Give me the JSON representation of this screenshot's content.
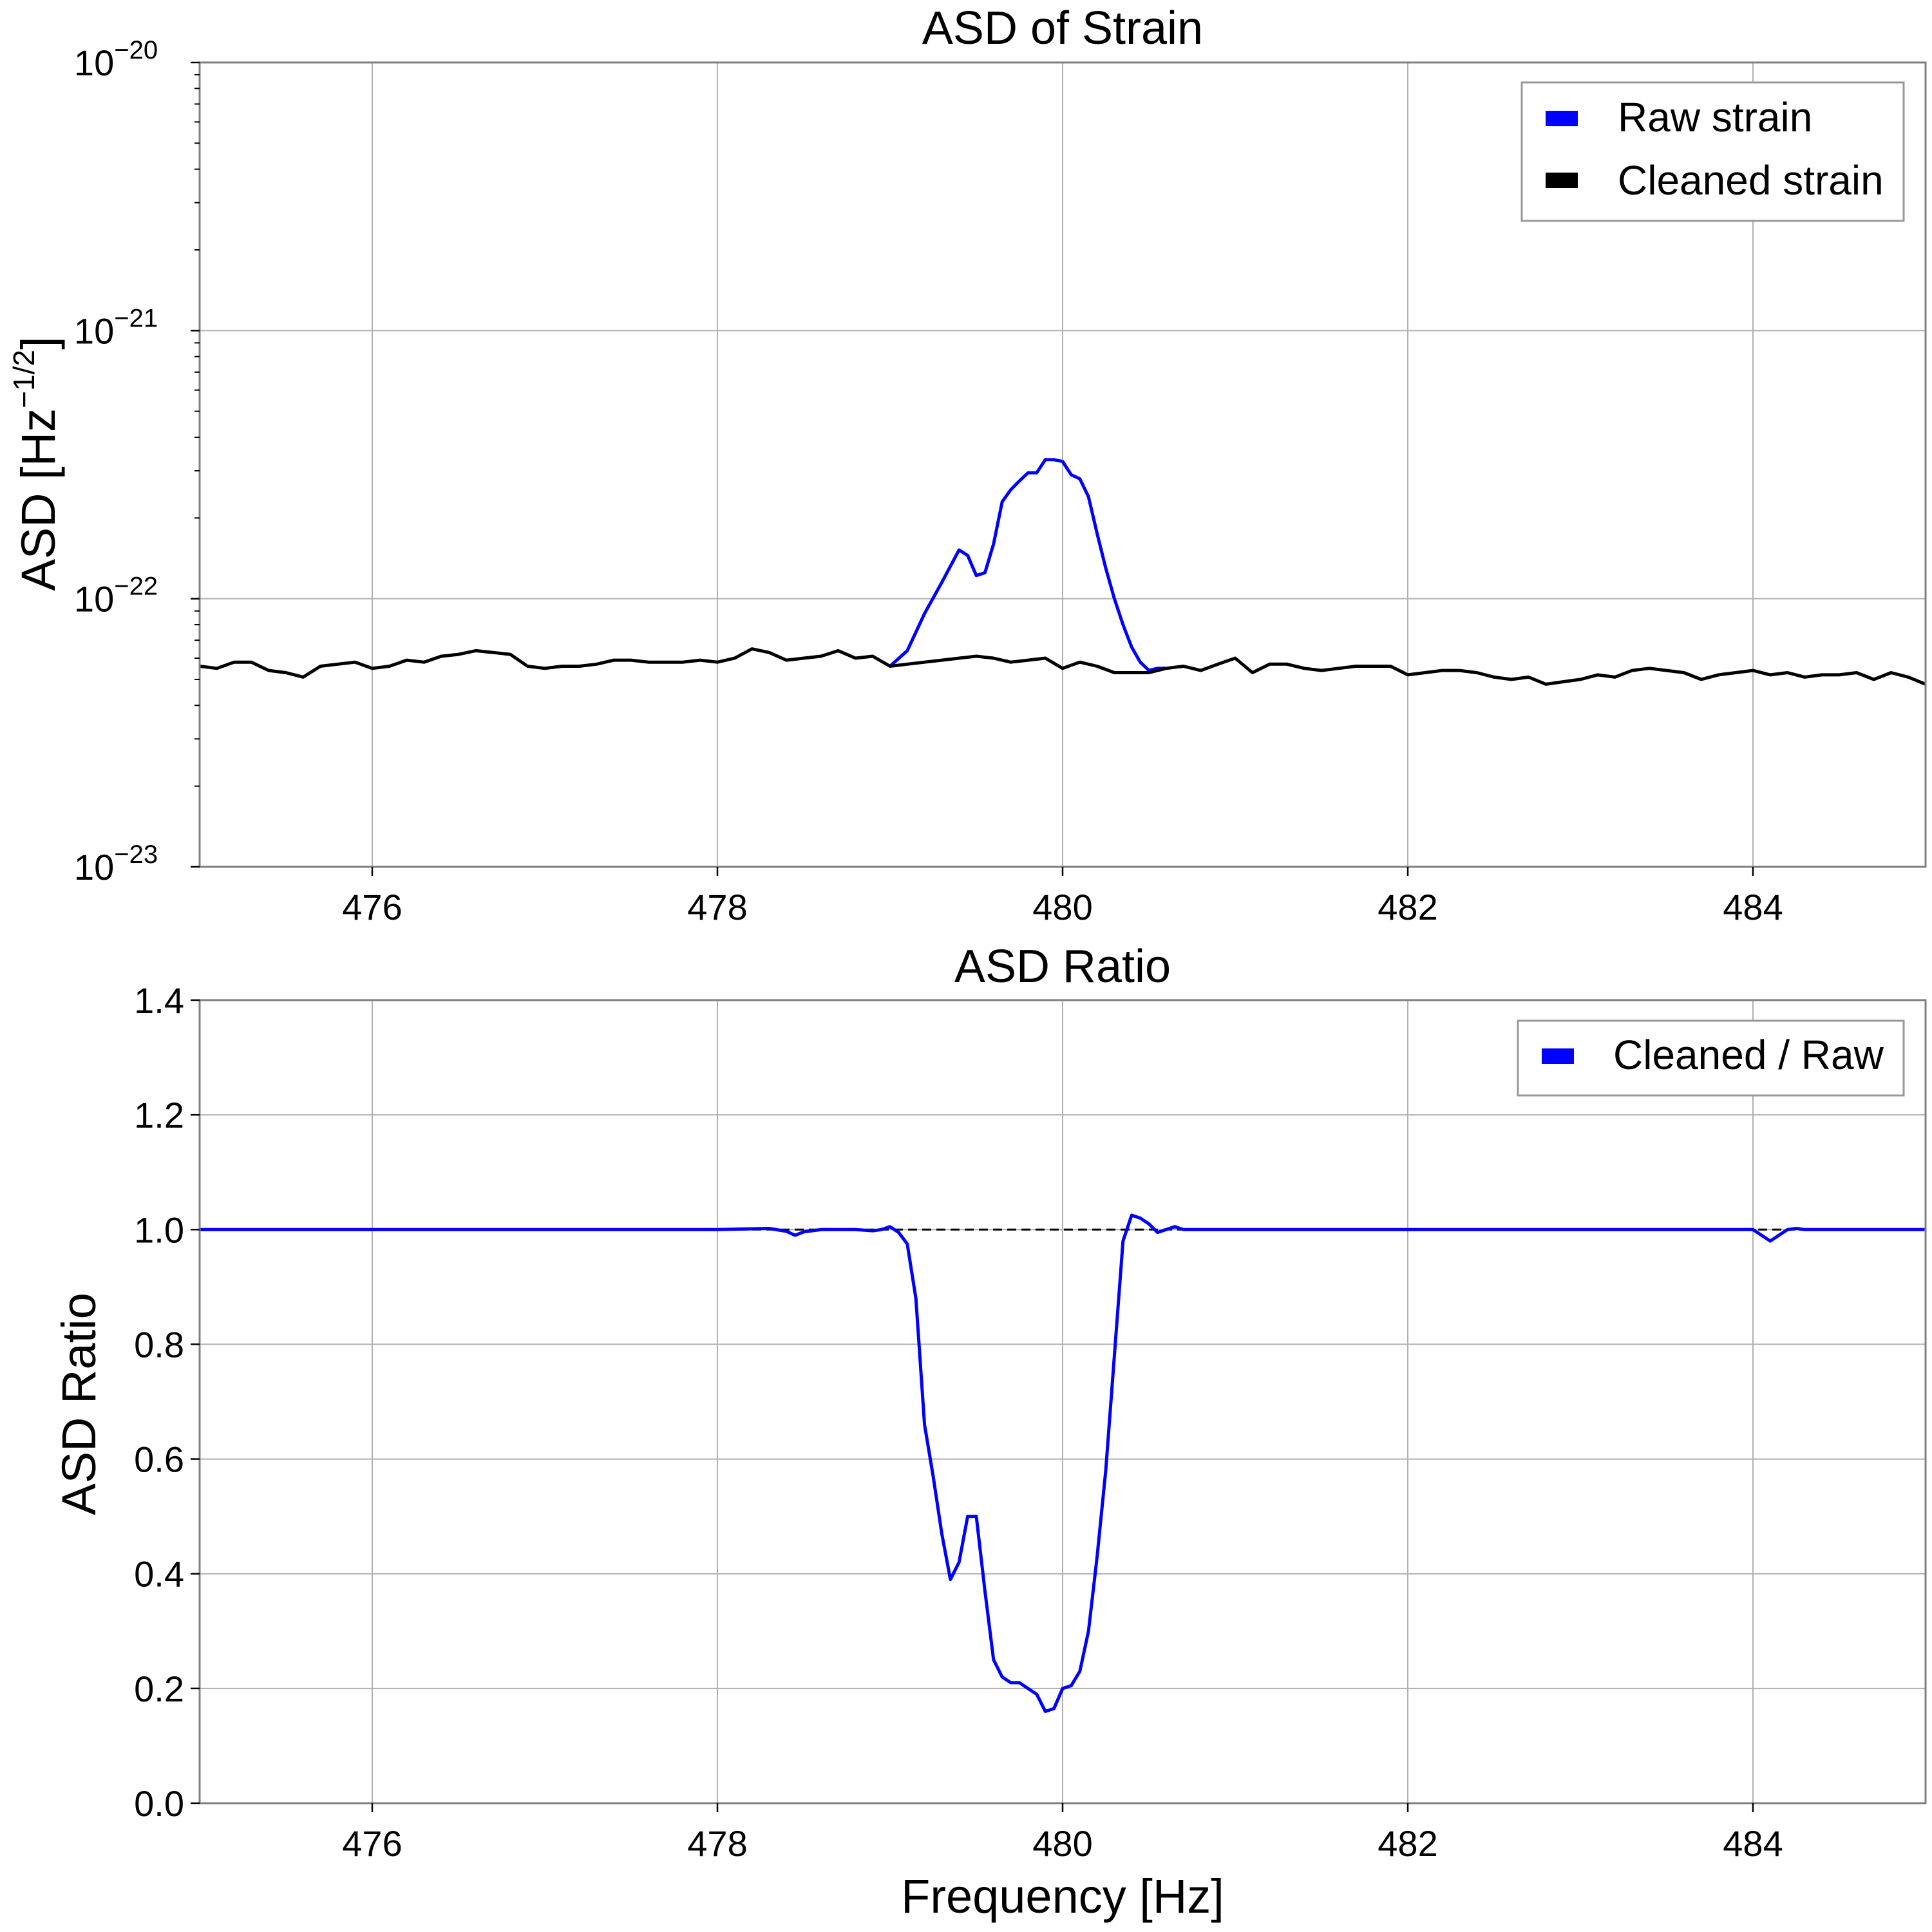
{
  "colors": {
    "raw": "#0000ff",
    "cleaned": "#000000",
    "ratio": "#0000ff",
    "grid": "#b0b0b0",
    "frame": "#808080"
  },
  "chart_data": [
    {
      "type": "line",
      "title": "ASD of Strain",
      "xlabel": "",
      "ylabel": "ASD [Hz",
      "ylabel_exp": "−1/2",
      "ylabel_close": "]",
      "yscale": "log",
      "xlim": [
        475,
        485
      ],
      "ylim": [
        1e-23,
        1e-20
      ],
      "xticks": [
        476,
        478,
        480,
        482,
        484
      ],
      "xtick_labels": [
        "476",
        "478",
        "480",
        "482",
        "484"
      ],
      "yticks": [
        {
          "value": 1e-20,
          "base": "10",
          "exp": "−20"
        },
        {
          "value": 1e-21,
          "base": "10",
          "exp": "−21"
        },
        {
          "value": 1e-22,
          "base": "10",
          "exp": "−22"
        },
        {
          "value": 1e-23,
          "base": "10",
          "exp": "−23"
        }
      ],
      "grid": true,
      "legend_position": "top-right",
      "series": [
        {
          "name": "Raw strain",
          "color": "#0000ff",
          "x": [
            479.0,
            479.1,
            479.2,
            479.3,
            479.4,
            479.45,
            479.5,
            479.55,
            479.6,
            479.65,
            479.7,
            479.75,
            479.8,
            479.85,
            479.9,
            479.95,
            480.0,
            480.05,
            480.1,
            480.15,
            480.2,
            480.25,
            480.3,
            480.35,
            480.4,
            480.45,
            480.5,
            480.55,
            480.6
          ],
          "y": [
            5.6e-23,
            6.4e-23,
            8.8e-23,
            1.15e-22,
            1.52e-22,
            1.45e-22,
            1.22e-22,
            1.25e-22,
            1.6e-22,
            2.3e-22,
            2.55e-22,
            2.75e-22,
            2.95e-22,
            2.95e-22,
            3.3e-22,
            3.3e-22,
            3.25e-22,
            2.9e-22,
            2.8e-22,
            2.4e-22,
            1.75e-22,
            1.3e-22,
            1e-22,
            8e-23,
            6.6e-23,
            5.8e-23,
            5.4e-23,
            5.5e-23,
            5.5e-23
          ]
        },
        {
          "name": "Cleaned strain",
          "color": "#000000",
          "x": [
            475.0,
            475.1,
            475.2,
            475.3,
            475.4,
            475.5,
            475.6,
            475.7,
            475.8,
            475.9,
            476.0,
            476.1,
            476.2,
            476.3,
            476.4,
            476.5,
            476.6,
            476.7,
            476.8,
            476.9,
            477.0,
            477.1,
            477.2,
            477.3,
            477.4,
            477.5,
            477.6,
            477.7,
            477.8,
            477.9,
            478.0,
            478.1,
            478.2,
            478.3,
            478.4,
            478.5,
            478.6,
            478.7,
            478.8,
            478.9,
            479.0,
            479.1,
            479.2,
            479.3,
            479.4,
            479.5,
            479.6,
            479.7,
            479.8,
            479.9,
            480.0,
            480.1,
            480.2,
            480.3,
            480.4,
            480.5,
            480.6,
            480.7,
            480.8,
            480.9,
            481.0,
            481.1,
            481.2,
            481.3,
            481.4,
            481.5,
            481.6,
            481.7,
            481.8,
            481.9,
            482.0,
            482.1,
            482.2,
            482.3,
            482.4,
            482.5,
            482.6,
            482.7,
            482.8,
            482.9,
            483.0,
            483.1,
            483.2,
            483.3,
            483.4,
            483.5,
            483.6,
            483.7,
            483.8,
            483.9,
            484.0,
            484.1,
            484.2,
            484.3,
            484.4,
            484.5,
            484.6,
            484.7,
            484.8,
            484.9,
            485.0
          ],
          "y": [
            5.6e-23,
            5.5e-23,
            5.8e-23,
            5.8e-23,
            5.4e-23,
            5.3e-23,
            5.1e-23,
            5.6e-23,
            5.7e-23,
            5.8e-23,
            5.5e-23,
            5.6e-23,
            5.9e-23,
            5.8e-23,
            6.1e-23,
            6.2e-23,
            6.4e-23,
            6.3e-23,
            6.2e-23,
            5.6e-23,
            5.5e-23,
            5.6e-23,
            5.6e-23,
            5.7e-23,
            5.9e-23,
            5.9e-23,
            5.8e-23,
            5.8e-23,
            5.8e-23,
            5.9e-23,
            5.8e-23,
            6e-23,
            6.5e-23,
            6.3e-23,
            5.9e-23,
            6e-23,
            6.1e-23,
            6.4e-23,
            6e-23,
            6.1e-23,
            5.6e-23,
            5.7e-23,
            5.8e-23,
            5.9e-23,
            6e-23,
            6.1e-23,
            6e-23,
            5.8e-23,
            5.9e-23,
            6e-23,
            5.5e-23,
            5.8e-23,
            5.6e-23,
            5.3e-23,
            5.3e-23,
            5.3e-23,
            5.5e-23,
            5.6e-23,
            5.4e-23,
            5.7e-23,
            6e-23,
            5.3e-23,
            5.7e-23,
            5.7e-23,
            5.5e-23,
            5.4e-23,
            5.5e-23,
            5.6e-23,
            5.6e-23,
            5.6e-23,
            5.2e-23,
            5.3e-23,
            5.4e-23,
            5.4e-23,
            5.3e-23,
            5.1e-23,
            5e-23,
            5.1e-23,
            4.8e-23,
            4.9e-23,
            5e-23,
            5.2e-23,
            5.1e-23,
            5.4e-23,
            5.5e-23,
            5.4e-23,
            5.3e-23,
            5e-23,
            5.2e-23,
            5.3e-23,
            5.4e-23,
            5.2e-23,
            5.3e-23,
            5.1e-23,
            5.2e-23,
            5.2e-23,
            5.3e-23,
            5e-23,
            5.3e-23,
            5.1e-23,
            4.8e-23
          ]
        }
      ]
    },
    {
      "type": "line",
      "title": "ASD Ratio",
      "xlabel": "Frequency [Hz]",
      "ylabel": "ASD Ratio",
      "yscale": "linear",
      "xlim": [
        475,
        485
      ],
      "ylim": [
        0.0,
        1.4
      ],
      "xticks": [
        476,
        478,
        480,
        482,
        484
      ],
      "xtick_labels": [
        "476",
        "478",
        "480",
        "482",
        "484"
      ],
      "yticks": [
        0.0,
        0.2,
        0.4,
        0.6,
        0.8,
        1.0,
        1.2,
        1.4
      ],
      "ytick_labels": [
        "0.0",
        "0.2",
        "0.4",
        "0.6",
        "0.8",
        "1.0",
        "1.2",
        "1.4"
      ],
      "grid": true,
      "legend_position": "top-right",
      "reference_line": 1.0,
      "series": [
        {
          "name": "Cleaned / Raw",
          "color": "#0000ff",
          "x": [
            475.0,
            478.0,
            478.3,
            478.4,
            478.45,
            478.5,
            478.6,
            478.7,
            478.8,
            478.9,
            478.95,
            479.0,
            479.05,
            479.1,
            479.15,
            479.2,
            479.25,
            479.3,
            479.35,
            479.4,
            479.45,
            479.5,
            479.55,
            479.6,
            479.65,
            479.7,
            479.75,
            479.8,
            479.85,
            479.9,
            479.95,
            480.0,
            480.05,
            480.1,
            480.15,
            480.2,
            480.25,
            480.3,
            480.35,
            480.4,
            480.45,
            480.5,
            480.55,
            480.6,
            480.65,
            480.7,
            480.75,
            480.8,
            480.85,
            480.9,
            480.95,
            481.0,
            484.0,
            484.05,
            484.1,
            484.15,
            484.2,
            484.25,
            484.3,
            485.0
          ],
          "y": [
            1.0,
            1.0,
            1.002,
            0.997,
            0.99,
            0.996,
            1.0,
            1.0,
            1.0,
            0.998,
            1.0,
            1.005,
            0.995,
            0.975,
            0.88,
            0.66,
            0.57,
            0.47,
            0.39,
            0.42,
            0.5,
            0.5,
            0.37,
            0.25,
            0.22,
            0.21,
            0.21,
            0.2,
            0.19,
            0.16,
            0.165,
            0.2,
            0.205,
            0.23,
            0.3,
            0.43,
            0.58,
            0.78,
            0.98,
            1.025,
            1.02,
            1.01,
            0.995,
            1.0,
            1.005,
            1.0,
            1.0,
            1.0,
            1.0,
            1.0,
            1.0,
            1.0,
            1.0,
            0.99,
            0.98,
            0.99,
            1.0,
            1.002,
            1.0,
            1.0
          ]
        }
      ]
    }
  ]
}
